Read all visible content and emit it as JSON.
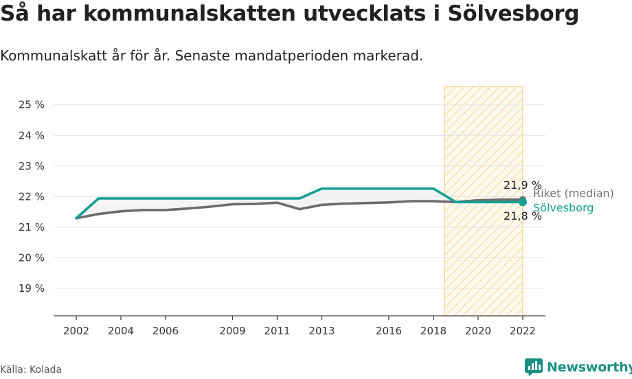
{
  "title": "Så har kommunalskatten utvecklats i Sölvesborg",
  "subtitle": "Kommunalskatt år för år. Senaste mandatperioden markerad.",
  "source": "Källa: Kolada",
  "brand": "Newsworthy",
  "chart_data": {
    "type": "line",
    "x": [
      2002,
      2003,
      2004,
      2005,
      2006,
      2007,
      2008,
      2009,
      2010,
      2011,
      2012,
      2013,
      2014,
      2015,
      2016,
      2017,
      2018,
      2019,
      2020,
      2021,
      2022
    ],
    "x_ticks": [
      2002,
      2004,
      2006,
      2009,
      2011,
      2013,
      2016,
      2018,
      2020,
      2022
    ],
    "x_tick_labels": [
      "2002",
      "2004",
      "2006",
      "2009",
      "2011",
      "2013",
      "2016",
      "2018",
      "2020",
      "2022"
    ],
    "y_ticks": [
      19,
      20,
      21,
      22,
      23,
      24,
      25
    ],
    "y_tick_labels": [
      "19 %",
      "20 %",
      "21 %",
      "22 %",
      "23 %",
      "24 %",
      "25 %"
    ],
    "ylim": [
      18.1,
      25.6
    ],
    "grid": true,
    "highlight_range": [
      2018.5,
      2022
    ],
    "highlight_color": "#fde9b0",
    "series": [
      {
        "name": "Riket (median)",
        "color": "#6e6a72",
        "values": [
          21.29,
          21.43,
          21.52,
          21.56,
          21.56,
          21.61,
          21.67,
          21.75,
          21.76,
          21.8,
          21.59,
          21.73,
          21.77,
          21.79,
          21.81,
          21.85,
          21.85,
          21.82,
          21.88,
          21.9,
          21.9
        ],
        "end_label": "21,9 %"
      },
      {
        "name": "Sölvesborg",
        "color": "#149e92",
        "values": [
          21.29,
          21.94,
          21.94,
          21.94,
          21.94,
          21.94,
          21.94,
          21.94,
          21.94,
          21.94,
          21.94,
          22.26,
          22.26,
          22.26,
          22.26,
          22.26,
          22.26,
          21.82,
          21.82,
          21.82,
          21.82
        ],
        "end_label": "21,8 %"
      }
    ]
  }
}
